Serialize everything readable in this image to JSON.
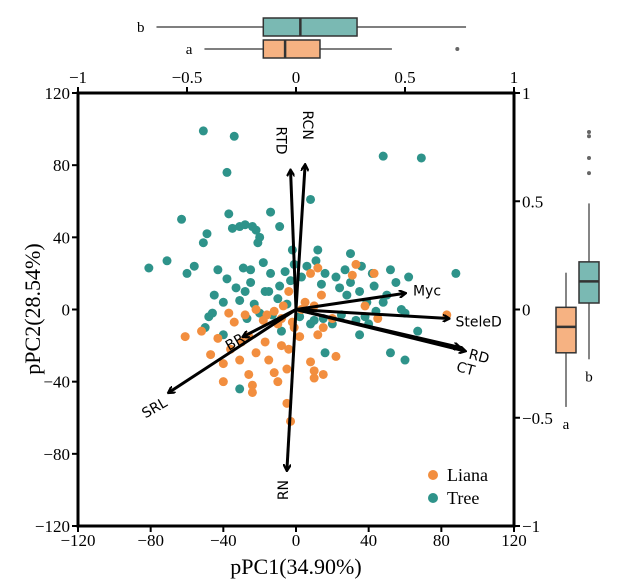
{
  "chart_data": {
    "type": "scatter",
    "title": "",
    "xlabel": "pPC1(34.90%)",
    "ylabel": "pPC2(28.54%)",
    "xlim": [
      -120,
      120
    ],
    "ylim": [
      -120,
      120
    ],
    "x_ticks": [
      -120,
      -80,
      -40,
      0,
      40,
      80,
      120
    ],
    "y_ticks": [
      -120,
      -80,
      -40,
      0,
      40,
      80,
      120
    ],
    "x_tick_labels": [
      "−120",
      "−80",
      "−40",
      "0",
      "40",
      "80",
      "120"
    ],
    "y_tick_labels": [
      "−120",
      "−80",
      "−40",
      "0",
      "40",
      "80",
      "120"
    ],
    "secondary_x_ticks": [
      -1,
      -0.5,
      0,
      0.5,
      1
    ],
    "secondary_x_tick_labels": [
      "−1",
      "−0.5",
      "0",
      "0.5",
      "1"
    ],
    "secondary_y_ticks": [
      -1,
      -0.5,
      0,
      0.5,
      1
    ],
    "secondary_y_tick_labels": [
      "−1",
      "−0.5",
      "0",
      "0.5",
      "1"
    ],
    "grid": false,
    "legend": {
      "position": "bottom-right",
      "entries": [
        {
          "name": "Liana",
          "color": "#F28E3F"
        },
        {
          "name": "Tree",
          "color": "#2E938A"
        }
      ]
    },
    "series": [
      {
        "name": "Tree",
        "color": "#2E938A",
        "points": [
          [
            -51,
            99
          ],
          [
            -34,
            96
          ],
          [
            -38,
            76
          ],
          [
            8,
            61
          ],
          [
            48,
            85
          ],
          [
            69,
            84
          ],
          [
            -81,
            23
          ],
          [
            -71,
            27
          ],
          [
            -63,
            50
          ],
          [
            -49,
            42
          ],
          [
            -51,
            37
          ],
          [
            -37,
            53
          ],
          [
            -14,
            54
          ],
          [
            -31,
            46
          ],
          [
            -35,
            45
          ],
          [
            -28,
            47
          ],
          [
            -24,
            46
          ],
          [
            -22,
            44
          ],
          [
            -20,
            40
          ],
          [
            -21,
            37
          ],
          [
            -9,
            46
          ],
          [
            -56,
            24
          ],
          [
            -43,
            22
          ],
          [
            -38,
            17
          ],
          [
            -29,
            23
          ],
          [
            -25,
            22
          ],
          [
            -18,
            26
          ],
          [
            -14,
            20
          ],
          [
            -33,
            12
          ],
          [
            -45,
            8
          ],
          [
            -28,
            10
          ],
          [
            -31,
            5
          ],
          [
            -23,
            3
          ],
          [
            -17,
            10
          ],
          [
            -9,
            13
          ],
          [
            -6,
            21
          ],
          [
            -3,
            16
          ],
          [
            -10,
            6
          ],
          [
            -5,
            3
          ],
          [
            -1,
            25
          ],
          [
            -40,
            4
          ],
          [
            -46,
            -2
          ],
          [
            -48,
            -4
          ],
          [
            -27,
            -5
          ],
          [
            -20,
            -2
          ],
          [
            -13,
            -3
          ],
          [
            2,
            -4
          ],
          [
            8,
            -8
          ],
          [
            10,
            -6
          ],
          [
            -8,
            -12
          ],
          [
            -40,
            -14
          ],
          [
            -50,
            -10
          ],
          [
            3,
            18
          ],
          [
            6,
            24
          ],
          [
            11,
            27
          ],
          [
            16,
            20
          ],
          [
            14,
            14
          ],
          [
            22,
            18
          ],
          [
            24,
            12
          ],
          [
            28,
            8
          ],
          [
            30,
            15
          ],
          [
            35,
            10
          ],
          [
            39,
            4
          ],
          [
            43,
            13
          ],
          [
            50,
            8
          ],
          [
            55,
            15
          ],
          [
            62,
            18
          ],
          [
            48,
            4
          ],
          [
            44,
            -1
          ],
          [
            38,
            -4
          ],
          [
            33,
            -6
          ],
          [
            25,
            -3
          ],
          [
            20,
            -8
          ],
          [
            15,
            -5
          ],
          [
            60,
            -2
          ],
          [
            67,
            -12
          ],
          [
            88,
            20
          ],
          [
            30,
            31
          ],
          [
            36,
            24
          ],
          [
            42,
            20
          ],
          [
            -15,
            10
          ],
          [
            -2,
            33
          ],
          [
            -60,
            20
          ],
          [
            -25,
            15
          ],
          [
            27,
            22
          ],
          [
            12,
            33
          ],
          [
            52,
            22
          ],
          [
            58,
            0
          ],
          [
            40,
            -8
          ],
          [
            35,
            -14
          ],
          [
            60,
            -28
          ],
          [
            -31,
            -44
          ],
          [
            16,
            -24
          ],
          [
            52,
            -24
          ]
        ]
      },
      {
        "name": "Liana",
        "color": "#F28E3F",
        "points": [
          [
            -37,
            -2
          ],
          [
            -34,
            -7
          ],
          [
            -26,
            -15
          ],
          [
            -30,
            -18
          ],
          [
            -43,
            -16
          ],
          [
            -52,
            -12
          ],
          [
            -61,
            -15
          ],
          [
            -47,
            -25
          ],
          [
            -40,
            -30
          ],
          [
            -40,
            -40
          ],
          [
            -31,
            -28
          ],
          [
            -26,
            -36
          ],
          [
            -24,
            -42
          ],
          [
            -24,
            -46
          ],
          [
            -15,
            -28
          ],
          [
            -12,
            -35
          ],
          [
            -10,
            -40
          ],
          [
            -5,
            -33
          ],
          [
            -5,
            -52
          ],
          [
            -3,
            -62
          ],
          [
            -17,
            -18
          ],
          [
            -8,
            -20
          ],
          [
            -10,
            -8
          ],
          [
            -1,
            -10
          ],
          [
            -4,
            -22
          ],
          [
            8,
            -29
          ],
          [
            10,
            -38
          ],
          [
            10,
            -34
          ],
          [
            15,
            -36
          ],
          [
            22,
            -26
          ],
          [
            -22,
            0
          ],
          [
            -16,
            -3
          ],
          [
            -8,
            -5
          ],
          [
            3,
            0
          ],
          [
            5,
            4
          ],
          [
            10,
            2
          ],
          [
            14,
            8
          ],
          [
            -4,
            10
          ],
          [
            8,
            20
          ],
          [
            12,
            23
          ],
          [
            -2,
            -7
          ],
          [
            -7,
            2
          ],
          [
            15,
            -10
          ],
          [
            20,
            -5
          ],
          [
            31,
            19
          ],
          [
            33,
            25
          ],
          [
            38,
            2
          ],
          [
            43,
            20
          ],
          [
            45,
            -5
          ],
          [
            83,
            -3
          ],
          [
            -18,
            -6
          ],
          [
            -28,
            -3
          ],
          [
            -12,
            -1
          ],
          [
            2,
            -15
          ],
          [
            12,
            -14
          ],
          [
            -36,
            -22
          ],
          [
            -22,
            -24
          ]
        ]
      }
    ],
    "loadings": [
      {
        "name": "RCN",
        "x": 5,
        "y": 80
      },
      {
        "name": "RTD",
        "x": -3,
        "y": 77
      },
      {
        "name": "Myc",
        "x": 60,
        "y": 9
      },
      {
        "name": "SteleD",
        "x": 84,
        "y": -5
      },
      {
        "name": "RD",
        "x": 93,
        "y": -23
      },
      {
        "name": "CT",
        "x": 90,
        "y": -21
      },
      {
        "name": "BR",
        "x": -29,
        "y": -15
      },
      {
        "name": "SRL",
        "x": -70,
        "y": -46
      },
      {
        "name": "RN",
        "x": -5,
        "y": -89
      }
    ],
    "boxplot_top": {
      "axis": "pPC1 loading scale",
      "groups": [
        {
          "name": "Tree",
          "letter": "b",
          "color": "#7AB9B3",
          "whisker_low": -0.64,
          "q1": -0.15,
          "median": 0.02,
          "q3": 0.28,
          "whisker_high": 0.78,
          "outliers": []
        },
        {
          "name": "Liana",
          "letter": "a",
          "color": "#F6B282",
          "whisker_low": -0.42,
          "q1": -0.15,
          "median": -0.05,
          "q3": 0.11,
          "whisker_high": 0.44,
          "outliers": [
            0.74
          ]
        }
      ]
    },
    "boxplot_right": {
      "axis": "pPC2 loading scale",
      "groups": [
        {
          "name": "Liana",
          "letter": "a",
          "color": "#F6B282",
          "whisker_low": -0.45,
          "q1": -0.2,
          "median": -0.08,
          "q3": 0.01,
          "whisker_high": 0.17,
          "outliers": []
        },
        {
          "name": "Tree",
          "letter": "b",
          "color": "#7AB9B3",
          "whisker_low": -0.23,
          "q1": 0.03,
          "median": 0.13,
          "q3": 0.22,
          "whisker_high": 0.49,
          "outliers": [
            0.63,
            0.7,
            0.8,
            0.82
          ]
        }
      ]
    }
  }
}
